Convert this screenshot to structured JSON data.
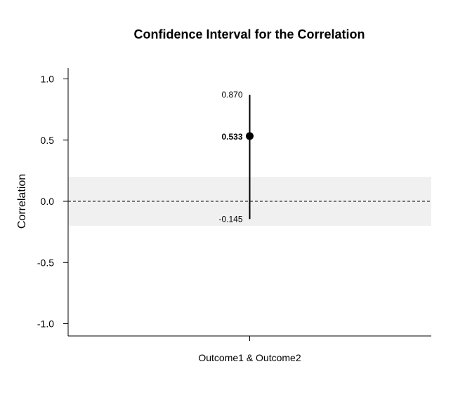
{
  "chart_data": {
    "type": "interval",
    "title": "Confidence Interval for the Correlation",
    "xlabel": "",
    "ylabel": "Correlation",
    "ylim": [
      -1.1,
      1.1
    ],
    "yticks": [
      1.0,
      0.5,
      0.0,
      -0.5,
      -1.0
    ],
    "ytick_labels": [
      "1.0",
      "0.5",
      "0.0",
      "-0.5",
      "-1.0"
    ],
    "categories": [
      "Outcome1 & Outcome2"
    ],
    "estimate": 0.533,
    "lower": -0.145,
    "upper": 0.87,
    "estimate_label": "0.533",
    "lower_label": "-0.145",
    "upper_label": "0.870",
    "reference_line": 0.0,
    "shaded_band": [
      -0.2,
      0.2
    ],
    "colors": {
      "band": "#f0f0f0",
      "interval": "#000000",
      "reference": "#000000"
    }
  }
}
